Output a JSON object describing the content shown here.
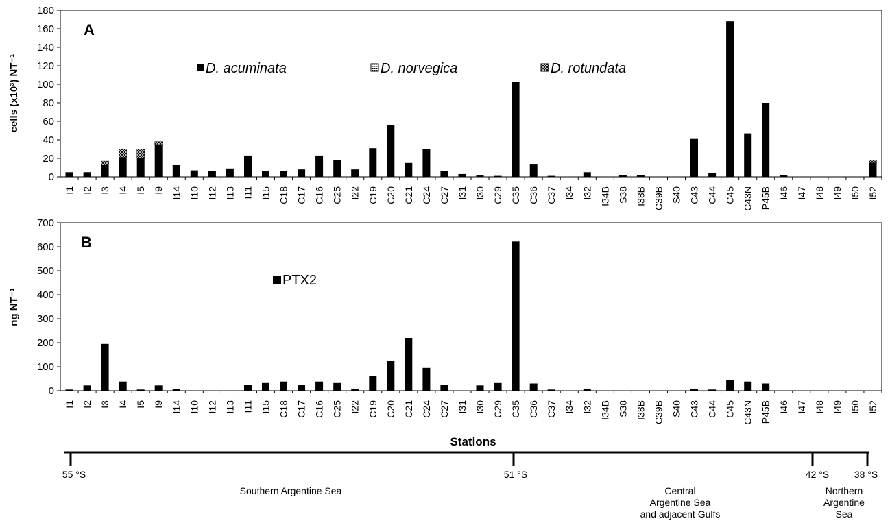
{
  "chart_data": [
    {
      "type": "bar",
      "panel_label": "A",
      "ylabel": "cells (x10³) NT⁻¹",
      "ylim": [
        0,
        180
      ],
      "yticks": [
        0,
        20,
        40,
        60,
        80,
        100,
        120,
        140,
        160,
        180
      ],
      "categories": [
        "I1",
        "I2",
        "I3",
        "I4",
        "I5",
        "I9",
        "I14",
        "I10",
        "I12",
        "I13",
        "I11",
        "I15",
        "C18",
        "C17",
        "C16",
        "C25",
        "I22",
        "C19",
        "C20",
        "C21",
        "C24",
        "C27",
        "I31",
        "I30",
        "C29",
        "C35",
        "C36",
        "C37",
        "I34",
        "I32",
        "I34B",
        "S38",
        "I38B",
        "C39B",
        "S40",
        "C43",
        "C44",
        "C45",
        "C43N",
        "P45B",
        "I46",
        "I47",
        "I48",
        "I49",
        "I50",
        "I52"
      ],
      "series": [
        {
          "name": "D. acuminata",
          "color": "#000000",
          "pattern": "solid",
          "values": [
            5,
            5,
            13,
            21,
            20,
            35,
            13,
            7,
            6,
            9,
            23,
            6,
            6,
            8,
            23,
            18,
            8,
            31,
            56,
            15,
            30,
            6,
            3,
            2,
            1,
            103,
            14,
            1,
            0,
            5,
            0,
            2,
            2,
            0,
            0,
            41,
            4,
            168,
            47,
            80,
            2,
            0,
            0,
            0,
            0,
            15
          ]
        },
        {
          "name": "D. norvegica",
          "color": "#000000",
          "pattern": "dots",
          "values": [
            0,
            0,
            0,
            0,
            0,
            0,
            0,
            0,
            0,
            0,
            0,
            0,
            0,
            0,
            0,
            0,
            0,
            0,
            0,
            0,
            0,
            0,
            0,
            0,
            0,
            0,
            0,
            0,
            0,
            0,
            0,
            0,
            0,
            0,
            0,
            0,
            0,
            0,
            0,
            0,
            0,
            0,
            0,
            0,
            0,
            0
          ]
        },
        {
          "name": "D. rotundata",
          "color": "#000000",
          "pattern": "cross",
          "values": [
            0,
            0,
            4,
            9,
            10,
            3,
            0,
            0,
            0,
            0,
            0,
            0,
            0,
            0,
            0,
            0,
            0,
            0,
            0,
            0,
            0,
            0,
            0,
            0,
            0,
            0,
            0,
            0,
            0,
            0,
            0,
            0,
            0,
            0,
            0,
            0,
            0,
            0,
            0,
            0,
            0,
            0,
            0,
            0,
            0,
            3
          ]
        }
      ]
    },
    {
      "type": "bar",
      "panel_label": "B",
      "ylabel": "ng NT⁻¹",
      "xlabel": "Stations",
      "ylim": [
        0,
        700
      ],
      "yticks": [
        0,
        100,
        200,
        300,
        400,
        500,
        600,
        700
      ],
      "categories": [
        "I1",
        "I2",
        "I3",
        "I4",
        "I5",
        "I9",
        "I14",
        "I10",
        "I12",
        "I13",
        "I11",
        "I15",
        "C18",
        "C17",
        "C16",
        "C25",
        "I22",
        "C19",
        "C20",
        "C21",
        "C24",
        "C27",
        "I31",
        "I30",
        "C29",
        "C35",
        "C36",
        "C37",
        "I34",
        "I32",
        "I34B",
        "S38",
        "I38B",
        "C39B",
        "S40",
        "C43",
        "C44",
        "C45",
        "C43N",
        "P45B",
        "I46",
        "I47",
        "I48",
        "I49",
        "I50",
        "I52"
      ],
      "series": [
        {
          "name": "PTX2",
          "color": "#000000",
          "pattern": "solid",
          "values": [
            5,
            22,
            195,
            38,
            5,
            22,
            8,
            0,
            0,
            0,
            25,
            32,
            38,
            25,
            38,
            32,
            8,
            62,
            125,
            220,
            95,
            25,
            0,
            22,
            32,
            622,
            30,
            5,
            0,
            8,
            0,
            0,
            0,
            0,
            0,
            8,
            5,
            45,
            38,
            30,
            0,
            0,
            0,
            0,
            0,
            0
          ]
        }
      ]
    }
  ],
  "latitude_scale": {
    "ticks": [
      "55 °S",
      "51 °S",
      "42 °S",
      "38 °S"
    ],
    "regions": [
      {
        "lines": [
          "Southern Argentine Sea"
        ]
      },
      {
        "lines": [
          "Central",
          "Argentine Sea",
          "and adjacent Gulfs"
        ]
      },
      {
        "lines": [
          "Northern",
          "Argentine",
          "Sea"
        ]
      }
    ]
  }
}
